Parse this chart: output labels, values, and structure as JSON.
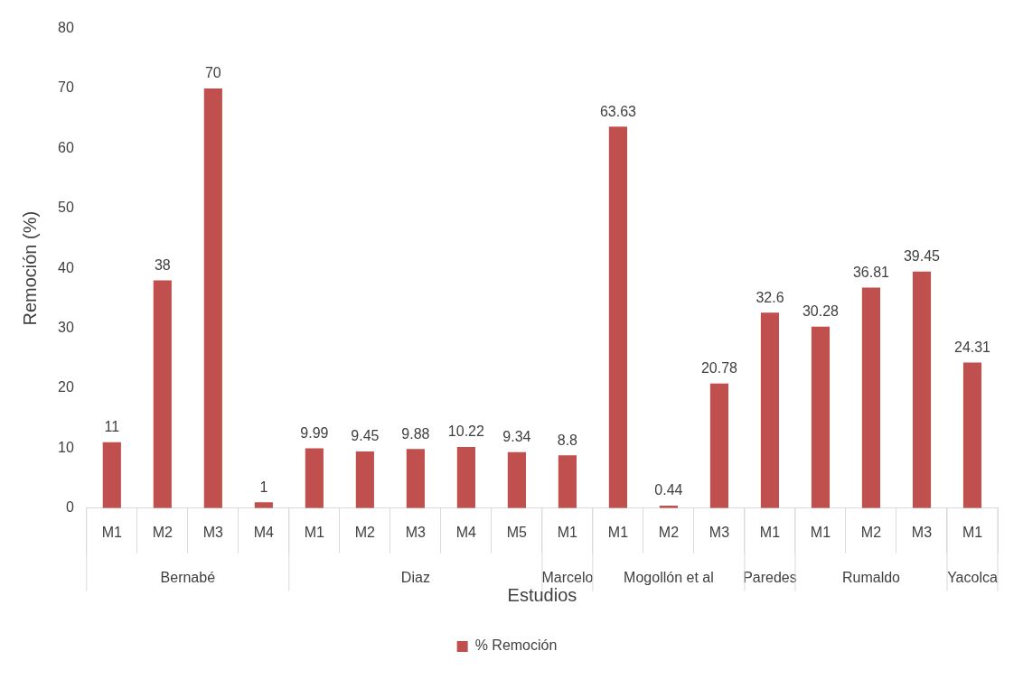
{
  "chart_data": {
    "type": "bar",
    "xlabel": "Estudios",
    "ylabel": "Remoción (%)",
    "categories": [
      "M1",
      "M2",
      "M3",
      "M4",
      "M1",
      "M2",
      "M3",
      "M4",
      "M5",
      "M1",
      "M1",
      "M2",
      "M3",
      "M1",
      "M1",
      "M2",
      "M3",
      "M1"
    ],
    "series": [
      {
        "name": "% Remoción",
        "color": "#c0504d",
        "values": [
          11,
          38,
          70,
          1,
          9.99,
          9.45,
          9.88,
          10.22,
          9.34,
          8.8,
          63.63,
          0.44,
          20.78,
          32.6,
          30.28,
          36.81,
          39.45,
          24.31
        ]
      }
    ],
    "annotations": [
      "Bernabé",
      "Diaz",
      "Marcelo",
      "Mogollón et al",
      "Paredes",
      "Rumaldo",
      "Yacolca"
    ],
    "ylim": [
      0,
      80
    ],
    "yticks": [
      0,
      10,
      20,
      30,
      40,
      50,
      60,
      70,
      80
    ],
    "grid": false,
    "legend": "bottom",
    "data_labels": true
  }
}
